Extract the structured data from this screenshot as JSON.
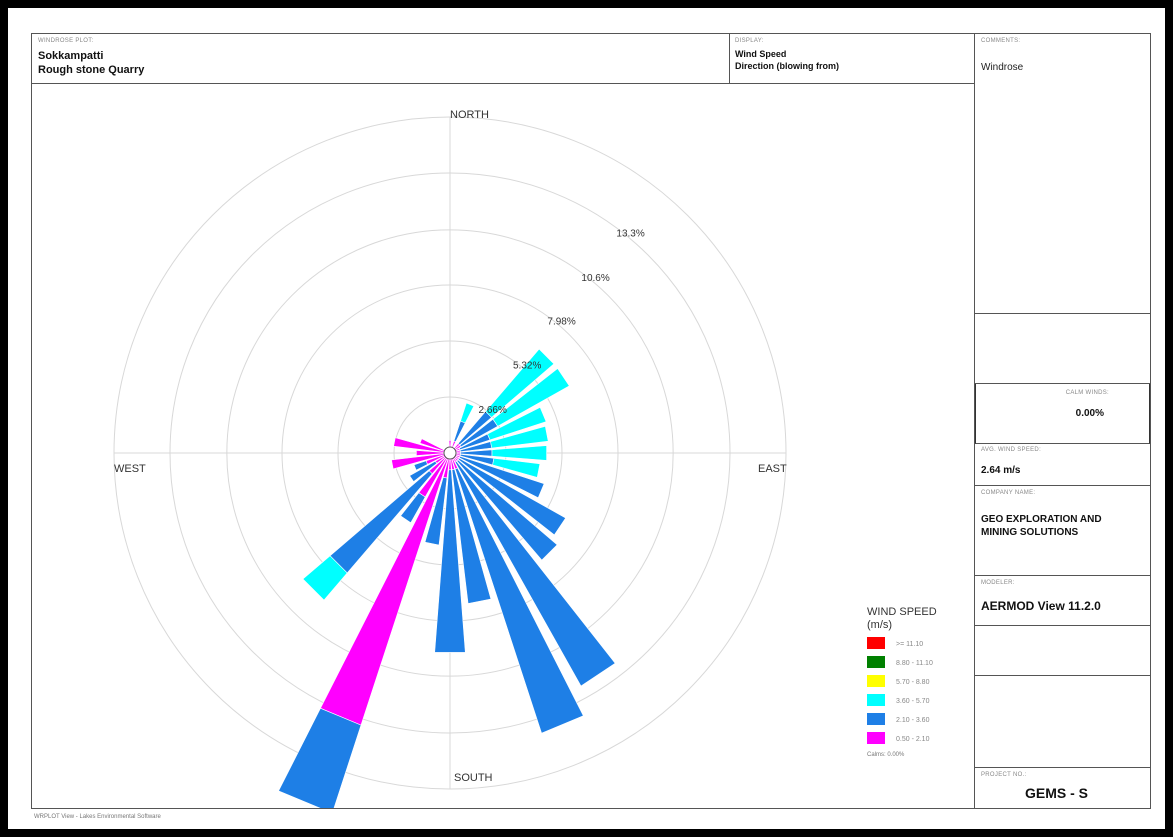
{
  "header": {
    "plot_caption": "WINDROSE PLOT:",
    "site_line1": "Sokkampatti",
    "site_line2": "Rough stone Quarry",
    "display_caption": "DISPLAY:",
    "display_line1": "Wind Speed",
    "display_line2": "Direction (blowing from)"
  },
  "panel": {
    "comments_caption": "COMMENTS:",
    "comments": "Windrose",
    "calm_caption": "CALM WINDS:",
    "calm_value": "0.00%",
    "avg_caption": "AVG. WIND SPEED:",
    "avg_value": "2.64 m/s",
    "company_caption": "COMPANY NAME:",
    "company_line1": "GEO EXPLORATION AND",
    "company_line2": "MINING SOLUTIONS",
    "modeler_caption": "MODELER:",
    "modeler": "AERMOD View 11.2.0",
    "project_caption": "PROJECT NO.:",
    "project": "GEMS - S"
  },
  "footer": "WRPLOT View - Lakes Environmental Software",
  "chart_data": {
    "type": "windrose",
    "compass": {
      "north": "NORTH",
      "south": "SOUTH",
      "east": "EAST",
      "west": "WEST"
    },
    "rings": [
      2.66,
      5.32,
      7.98,
      10.6,
      13.3
    ],
    "ring_labels": [
      "2.66%",
      "5.32%",
      "7.98%",
      "10.6%",
      "13.3%"
    ],
    "rmax": 15.96,
    "legend": {
      "title_line1": "WIND SPEED",
      "title_line2": "(m/s)",
      "bins": [
        {
          "label": ">= 11.10",
          "color": "#ff0000"
        },
        {
          "label": "8.80 - 11.10",
          "color": "#008000"
        },
        {
          "label": "5.70 - 8.80",
          "color": "#ffff00"
        },
        {
          "label": "3.60 - 5.70",
          "color": "#00ffff"
        },
        {
          "label": "2.10 - 3.60",
          "color": "#1e7fe6"
        },
        {
          "label": "0.50 - 2.10",
          "color": "#ff00ff"
        }
      ],
      "calms": "Calms: 0.00%"
    },
    "directions": [
      {
        "angle": 0,
        "cum": [
          0.6,
          0.6,
          0,
          0,
          0,
          0
        ]
      },
      {
        "angle": 22.5,
        "cum": [
          0.6,
          1.6,
          2.5,
          0,
          0,
          0
        ]
      },
      {
        "angle": 45,
        "cum": [
          0.6,
          2.6,
          6.5,
          0,
          0,
          0
        ]
      },
      {
        "angle": 56.25,
        "cum": [
          0.6,
          2.6,
          6.5,
          0,
          0,
          0
        ]
      },
      {
        "angle": 67.5,
        "cum": [
          0.5,
          2.0,
          4.8,
          0,
          0,
          0
        ]
      },
      {
        "angle": 78.75,
        "cum": [
          0.5,
          2.0,
          4.7,
          0,
          0,
          0
        ]
      },
      {
        "angle": 90,
        "cum": [
          0.5,
          2.0,
          4.6,
          0,
          0,
          0
        ]
      },
      {
        "angle": 101.25,
        "cum": [
          0.5,
          2.1,
          4.3,
          0,
          0,
          0
        ]
      },
      {
        "angle": 112.5,
        "cum": [
          0.5,
          4.7,
          0,
          0,
          0,
          0
        ]
      },
      {
        "angle": 123.75,
        "cum": [
          0.5,
          6.3,
          0,
          0,
          0,
          0
        ]
      },
      {
        "angle": 135,
        "cum": [
          0.5,
          6.7,
          0,
          0,
          0,
          0
        ]
      },
      {
        "angle": 146.25,
        "cum": [
          0.5,
          12.7,
          0,
          0,
          0,
          0
        ]
      },
      {
        "angle": 157.5,
        "cum": [
          0.8,
          14.0,
          0,
          0,
          0,
          0
        ]
      },
      {
        "angle": 168.75,
        "cum": [
          0.8,
          7.2,
          0,
          0,
          0,
          0
        ]
      },
      {
        "angle": 180,
        "cum": [
          0.8,
          9.5,
          0,
          0,
          0,
          0
        ]
      },
      {
        "angle": 191.25,
        "cum": [
          1.2,
          4.4,
          0,
          0,
          0,
          0
        ]
      },
      {
        "angle": 202.5,
        "cum": [
          13.6,
          18.0,
          0,
          0,
          0,
          0
        ]
      },
      {
        "angle": 213.75,
        "cum": [
          2.4,
          3.8,
          0,
          0,
          0,
          0
        ]
      },
      {
        "angle": 225,
        "cum": [
          1.3,
          7.5,
          9.2,
          0,
          0,
          0
        ]
      },
      {
        "angle": 236.25,
        "cum": [
          0.8,
          2.2,
          0,
          0,
          0,
          0
        ]
      },
      {
        "angle": 247.5,
        "cum": [
          1.2,
          1.8,
          0,
          0,
          0,
          0
        ]
      },
      {
        "angle": 258.75,
        "cum": [
          2.8,
          2.8,
          0,
          0,
          0,
          0
        ]
      },
      {
        "angle": 270,
        "cum": [
          1.6,
          1.6,
          0,
          0,
          0,
          0
        ]
      },
      {
        "angle": 281.25,
        "cum": [
          2.7,
          2.7,
          0,
          0,
          0,
          0
        ]
      },
      {
        "angle": 292.5,
        "cum": [
          1.5,
          1.5,
          0,
          0,
          0,
          0
        ]
      }
    ]
  }
}
